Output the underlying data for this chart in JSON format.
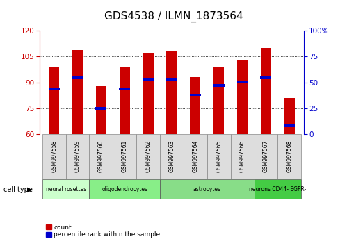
{
  "title": "GDS4538 / ILMN_1873564",
  "samples": [
    "GSM997558",
    "GSM997559",
    "GSM997560",
    "GSM997561",
    "GSM997562",
    "GSM997563",
    "GSM997564",
    "GSM997565",
    "GSM997566",
    "GSM997567",
    "GSM997568"
  ],
  "counts": [
    99,
    109,
    88,
    99,
    107,
    108,
    93,
    99,
    103,
    110,
    81
  ],
  "percentile_pct": [
    44,
    55,
    25,
    44,
    53,
    53,
    38,
    47,
    50,
    55,
    8
  ],
  "ylim_left": [
    60,
    120
  ],
  "ylim_right": [
    0,
    100
  ],
  "yticks_left": [
    60,
    75,
    90,
    105,
    120
  ],
  "yticks_right": [
    0,
    25,
    50,
    75,
    100
  ],
  "bar_color": "#cc0000",
  "marker_color": "#0000cc",
  "cell_types": [
    {
      "label": "neural rosettes",
      "start": 0,
      "end": 2,
      "color": "#ccffcc"
    },
    {
      "label": "oligodendrocytes",
      "start": 2,
      "end": 5,
      "color": "#88ee88"
    },
    {
      "label": "astrocytes",
      "start": 5,
      "end": 9,
      "color": "#88dd88"
    },
    {
      "label": "neurons CD44- EGFR-",
      "start": 9,
      "end": 11,
      "color": "#44cc44"
    }
  ],
  "cell_type_label": "cell type",
  "legend_count_label": "count",
  "legend_pct_label": "percentile rank within the sample",
  "title_fontsize": 11,
  "axis_label_fontsize": 7.5
}
